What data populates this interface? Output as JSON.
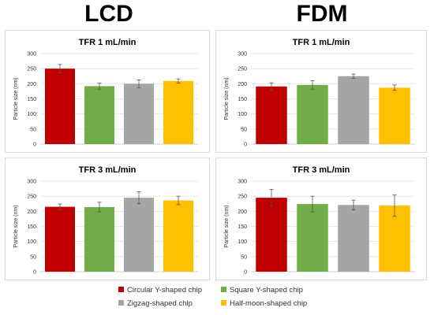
{
  "headers": {
    "left": "LCD",
    "right": "FDM"
  },
  "ylabel": "Particle size (nm)",
  "legend": [
    {
      "label": "Circular Y-shaped chip",
      "color": "#c00000"
    },
    {
      "label": "Square Y-shaped chip",
      "color": "#70ad47"
    },
    {
      "label": "Zigzag-shaped chip",
      "color": "#a5a5a5"
    },
    {
      "label": "Half-moon-shaped chip",
      "color": "#ffc000"
    }
  ],
  "chart_data": [
    {
      "type": "bar",
      "title": "TFR 1 mL/min",
      "ylabel": "Particle size (nm)",
      "ylim": [
        0,
        300
      ],
      "yticks": [
        0,
        50,
        100,
        150,
        200,
        250,
        300
      ],
      "grid": true,
      "categories": [
        "Circular Y-shaped chip",
        "Square Y-shaped chip",
        "Zigzag-shaped chip",
        "Half-moon-shaped chip"
      ],
      "values": [
        250,
        192,
        200,
        209
      ],
      "errors": [
        14,
        10,
        13,
        7
      ]
    },
    {
      "type": "bar",
      "title": "TFR 1 mL/min",
      "ylabel": "Particle size (nm)",
      "ylim": [
        0,
        300
      ],
      "yticks": [
        0,
        50,
        100,
        150,
        200,
        250,
        300
      ],
      "grid": true,
      "categories": [
        "Circular Y-shaped chip",
        "Square Y-shaped chip",
        "Zigzag-shaped chip",
        "Half-moon-shaped chip"
      ],
      "values": [
        191,
        196,
        225,
        187
      ],
      "errors": [
        12,
        14,
        7,
        9
      ]
    },
    {
      "type": "bar",
      "title": "TFR 3 mL/min",
      "ylabel": "Particle size (nm)",
      "ylim": [
        0,
        300
      ],
      "yticks": [
        0,
        50,
        100,
        150,
        200,
        250,
        300
      ],
      "grid": true,
      "categories": [
        "Circular Y-shaped chip",
        "Square Y-shaped chip",
        "Zigzag-shaped chip",
        "Half-moon-shaped chip"
      ],
      "values": [
        215,
        214,
        245,
        236
      ],
      "errors": [
        9,
        16,
        20,
        14
      ]
    },
    {
      "type": "bar",
      "title": "TFR 3 mL/min",
      "ylabel": "Particle size (nm)",
      "ylim": [
        0,
        300
      ],
      "yticks": [
        0,
        50,
        100,
        150,
        200,
        250,
        300
      ],
      "grid": true,
      "categories": [
        "Circular Y-shaped chip",
        "Square Y-shaped chip",
        "Zigzag-shaped chip",
        "Half-moon-shaped chip"
      ],
      "values": [
        245,
        224,
        221,
        219
      ],
      "errors": [
        28,
        26,
        16,
        35
      ]
    }
  ]
}
